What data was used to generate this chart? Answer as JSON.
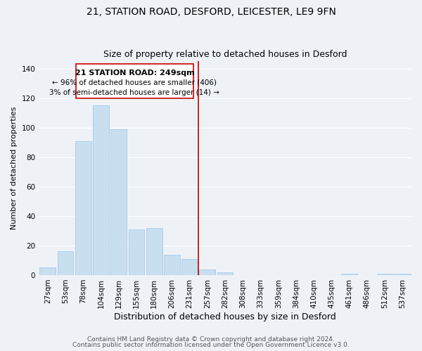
{
  "title": "21, STATION ROAD, DESFORD, LEICESTER, LE9 9FN",
  "subtitle": "Size of property relative to detached houses in Desford",
  "xlabel": "Distribution of detached houses by size in Desford",
  "ylabel": "Number of detached properties",
  "bar_color": "#c8dff0",
  "bar_edge_color": "#a8c8e8",
  "categories": [
    "27sqm",
    "53sqm",
    "78sqm",
    "104sqm",
    "129sqm",
    "155sqm",
    "180sqm",
    "206sqm",
    "231sqm",
    "257sqm",
    "282sqm",
    "308sqm",
    "333sqm",
    "359sqm",
    "384sqm",
    "410sqm",
    "435sqm",
    "461sqm",
    "486sqm",
    "512sqm",
    "537sqm"
  ],
  "values": [
    5,
    16,
    91,
    115,
    99,
    31,
    32,
    14,
    11,
    4,
    2,
    0,
    0,
    0,
    0,
    0,
    0,
    1,
    0,
    1,
    1
  ],
  "vline_idx": 9.5,
  "vline_color": "#cc0000",
  "annotation_title": "21 STATION ROAD: 249sqm",
  "annotation_line1": "← 96% of detached houses are smaller (406)",
  "annotation_line2": "3% of semi-detached houses are larger (14) →",
  "annotation_box_color": "#ffffff",
  "annotation_box_edge_color": "#cc0000",
  "ylim": [
    0,
    145
  ],
  "footer1": "Contains HM Land Registry data © Crown copyright and database right 2024.",
  "footer2": "Contains public sector information licensed under the Open Government Licence v3.0.",
  "background_color": "#eef2f7",
  "grid_color": "#ffffff",
  "title_fontsize": 10,
  "subtitle_fontsize": 9,
  "xlabel_fontsize": 9,
  "ylabel_fontsize": 8,
  "tick_fontsize": 7.5,
  "footer_fontsize": 6.5,
  "ann_title_fontsize": 8,
  "ann_text_fontsize": 7.5
}
